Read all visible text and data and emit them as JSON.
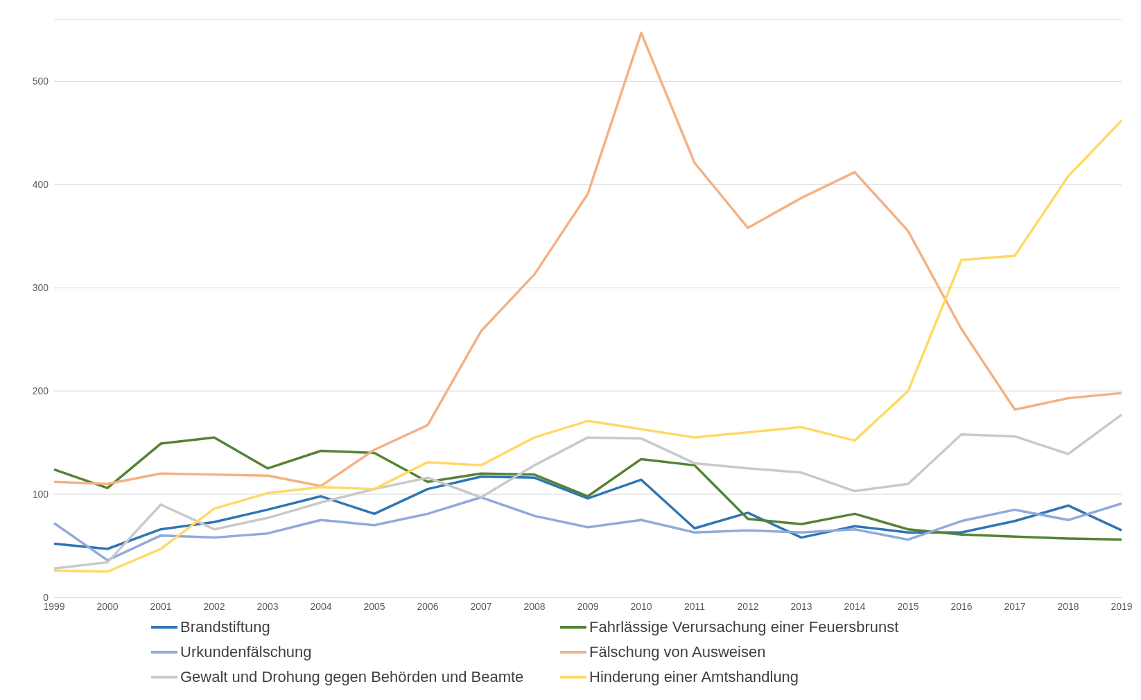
{
  "chart_data": {
    "type": "line",
    "categories": [
      "1999",
      "2000",
      "2001",
      "2002",
      "2003",
      "2004",
      "2005",
      "2006",
      "2007",
      "2008",
      "2009",
      "2010",
      "2011",
      "2012",
      "2013",
      "2014",
      "2015",
      "2016",
      "2017",
      "2018",
      "2019"
    ],
    "series": [
      {
        "name": "Brandstiftung",
        "color": "#2e75b6",
        "values": [
          52,
          47,
          66,
          73,
          85,
          98,
          81,
          105,
          117,
          116,
          96,
          114,
          67,
          82,
          58,
          69,
          63,
          63,
          74,
          89,
          65
        ]
      },
      {
        "name": "Fahrlässige Verursachung einer Feuersbrunst",
        "color": "#548235",
        "values": [
          124,
          106,
          149,
          155,
          125,
          142,
          140,
          112,
          120,
          119,
          98,
          134,
          128,
          76,
          71,
          81,
          66,
          61,
          59,
          57,
          56
        ]
      },
      {
        "name": "Urkundenfälschung",
        "color": "#8faadc",
        "values": [
          72,
          36,
          60,
          58,
          62,
          75,
          70,
          81,
          97,
          79,
          68,
          75,
          63,
          65,
          63,
          66,
          56,
          74,
          85,
          75,
          91
        ]
      },
      {
        "name": "Fälschung von Ausweisen",
        "color": "#f4b183",
        "values": [
          112,
          110,
          120,
          119,
          118,
          108,
          143,
          167,
          258,
          313,
          391,
          547,
          421,
          358,
          387,
          412,
          355,
          260,
          182,
          193,
          198
        ]
      },
      {
        "name": "Gewalt und Drohung gegen Behörden und Beamte",
        "color": "#c9c9c9",
        "values": [
          28,
          34,
          90,
          66,
          77,
          92,
          105,
          116,
          97,
          128,
          155,
          154,
          130,
          125,
          121,
          103,
          110,
          158,
          156,
          139,
          177
        ]
      },
      {
        "name": "Hinderung einer Amtshandlung",
        "color": "#ffd966",
        "values": [
          26,
          25,
          47,
          86,
          101,
          107,
          105,
          131,
          128,
          155,
          171,
          163,
          155,
          160,
          165,
          152,
          200,
          327,
          331,
          408,
          462
        ]
      }
    ],
    "ylim": [
      0,
      560
    ],
    "yticks": [
      0,
      100,
      200,
      300,
      400,
      500
    ],
    "grid": "y",
    "legend": "bottom",
    "marker": "none",
    "line_style": "solid"
  }
}
